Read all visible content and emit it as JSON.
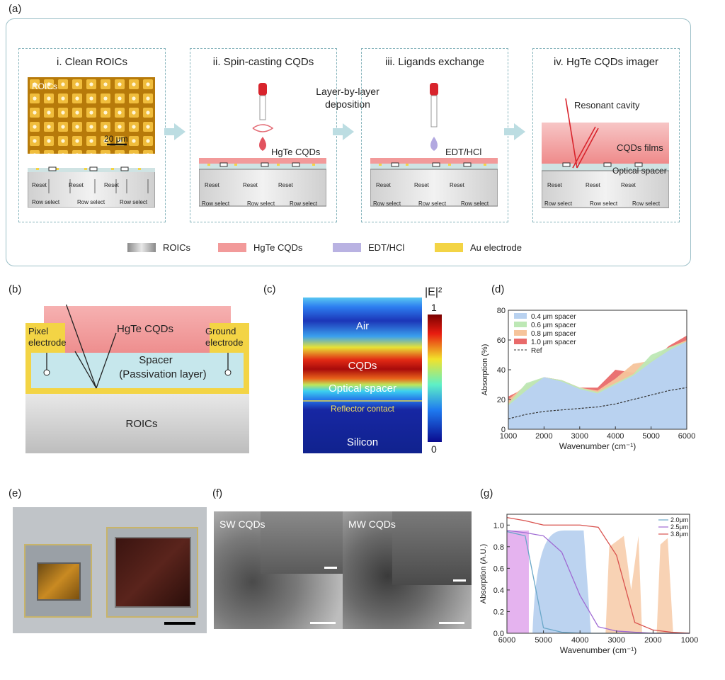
{
  "panels": {
    "a": "(a)",
    "b": "(b)",
    "c": "(c)",
    "d": "(d)",
    "e": "(e)",
    "f": "(f)",
    "g": "(g)"
  },
  "a": {
    "steps": [
      {
        "title": "i. Clean ROICs"
      },
      {
        "title": "ii. Spin-casting CQDs"
      },
      {
        "title": "iii. Ligands exchange"
      },
      {
        "title": "iv. HgTe CQDs imager"
      }
    ],
    "roics_label": "ROICs",
    "scale_label": "20 μm",
    "layer_by_layer": "Layer-by-layer deposition",
    "drop_hgte": "HgTe CQDs",
    "drop_edt": "EDT/HCl",
    "resonant_cavity": "Resonant cavity",
    "cqds_films": "CQDs films",
    "optical_spacer": "Optical spacer",
    "circuit": {
      "reset": "Reset",
      "rowselect": "Row select"
    },
    "legend": [
      {
        "label": "ROICs",
        "color": "#9a9a9a"
      },
      {
        "label": "HgTe CQDs",
        "color": "#f29a9a"
      },
      {
        "label": "EDT/HCl",
        "color": "#b9b2e2"
      },
      {
        "label": "Au electrode",
        "color": "#f3d445"
      }
    ]
  },
  "b": {
    "hgte": "HgTe CQDs",
    "pixel_electrode": "Pixel electrode",
    "ground_electrode": "Ground electrode",
    "spacer": "Spacer",
    "passivation": "(Passivation layer)",
    "roics": "ROICs"
  },
  "c": {
    "title": "|E|²",
    "cb_max": "1",
    "cb_min": "0",
    "regions": [
      "Air",
      "CQDs",
      "Optical spacer",
      "Reflector contact",
      "Silicon"
    ]
  },
  "chart_data": [
    {
      "id": "d",
      "type": "area",
      "xlabel": "Wavenumber (cm⁻¹)",
      "ylabel": "Absorption (%)",
      "xlim": [
        1000,
        6000
      ],
      "ylim": [
        0,
        80
      ],
      "xticks": [
        1000,
        2000,
        3000,
        4000,
        5000,
        6000
      ],
      "yticks": [
        0,
        20,
        40,
        60,
        80
      ],
      "x": [
        1000,
        1500,
        2000,
        2500,
        3000,
        3500,
        4000,
        4500,
        5000,
        5500,
        6000
      ],
      "series": [
        {
          "name": "1.0 μm spacer",
          "color": "#e96a6a",
          "values": [
            22,
            28,
            35,
            33,
            28,
            28,
            40,
            38,
            45,
            56,
            63
          ]
        },
        {
          "name": "0.8 μm spacer",
          "color": "#f6c49b",
          "values": [
            20,
            30,
            35,
            33,
            28,
            26,
            34,
            44,
            46,
            55,
            60
          ]
        },
        {
          "name": "0.6 μm spacer",
          "color": "#bde8b5",
          "values": [
            17,
            31,
            35,
            33,
            28,
            25,
            31,
            37,
            50,
            55,
            59
          ]
        },
        {
          "name": "0.4 μm spacer",
          "color": "#b9d2f0",
          "values": [
            16,
            26,
            35,
            32,
            27,
            24,
            30,
            36,
            45,
            53,
            59
          ]
        },
        {
          "name": "Ref",
          "color": "#333333",
          "dashed": true,
          "values": [
            7,
            10,
            12,
            13,
            14,
            15,
            17,
            20,
            23,
            26,
            28
          ]
        }
      ],
      "legend_position": "top-left"
    },
    {
      "id": "g",
      "type": "line",
      "xlabel": "Wavenumber (cm⁻¹)",
      "ylabel": "Absorption (A.U.)",
      "xlim": [
        6000,
        1000
      ],
      "ylim": [
        0,
        1.1
      ],
      "xticks": [
        6000,
        5000,
        4000,
        3000,
        2000,
        1000
      ],
      "yticks": [
        0.0,
        0.2,
        0.4,
        0.6,
        0.8,
        1.0
      ],
      "x": [
        6000,
        5500,
        5000,
        4500,
        4000,
        3500,
        3000,
        2500,
        2000,
        1500,
        1000
      ],
      "series": [
        {
          "name": "2.0μm",
          "color": "#6aa7c8",
          "values": [
            0.94,
            0.9,
            0.05,
            0.01,
            0.0,
            0.0,
            0.0,
            0.0,
            0.0,
            0.0,
            0.0
          ]
        },
        {
          "name": "2.5μm",
          "color": "#9f6ad3",
          "values": [
            0.95,
            0.93,
            0.9,
            0.75,
            0.35,
            0.06,
            0.02,
            0.01,
            0.0,
            0.0,
            0.0
          ]
        },
        {
          "name": "3.8μm",
          "color": "#d9534f",
          "values": [
            1.07,
            1.04,
            1.0,
            1.0,
            1.0,
            0.98,
            0.72,
            0.1,
            0.03,
            0.01,
            0.0
          ]
        }
      ],
      "legend_position": "top-right"
    }
  ],
  "e": {
    "label": "(e)"
  },
  "f": {
    "sw": "SW CQDs",
    "mw": "MW CQDs"
  }
}
